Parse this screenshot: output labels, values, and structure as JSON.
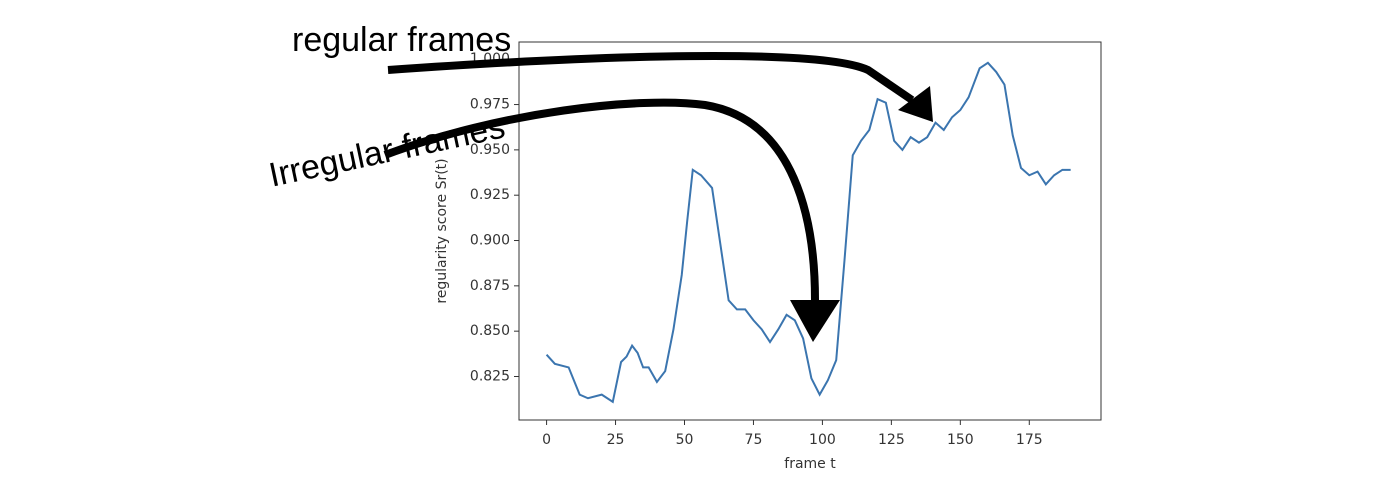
{
  "chart_data": {
    "type": "line",
    "x_label": "frame t",
    "y_label": "regularity score Sr(t)",
    "annotations": [
      "regular frames",
      "Irregular frames"
    ],
    "x": [
      0,
      3,
      8,
      12,
      15,
      20,
      24,
      27,
      29,
      31,
      33,
      35,
      37,
      40,
      43,
      46,
      49,
      51,
      53,
      56,
      60,
      63,
      66,
      69,
      72,
      75,
      78,
      81,
      84,
      87,
      90,
      93,
      96,
      99,
      102,
      105,
      108,
      111,
      114,
      117,
      120,
      123,
      126,
      129,
      132,
      135,
      138,
      141,
      144,
      147,
      150,
      153,
      157,
      160,
      163,
      166,
      169,
      172,
      175,
      178,
      181,
      184,
      187,
      190
    ],
    "series": [
      {
        "color": "#3b75af",
        "values": [
          0.837,
          0.832,
          0.83,
          0.815,
          0.813,
          0.815,
          0.811,
          0.833,
          0.836,
          0.842,
          0.838,
          0.83,
          0.83,
          0.822,
          0.828,
          0.851,
          0.881,
          0.911,
          0.939,
          0.936,
          0.929,
          0.898,
          0.867,
          0.862,
          0.862,
          0.856,
          0.851,
          0.844,
          0.851,
          0.859,
          0.856,
          0.846,
          0.824,
          0.815,
          0.823,
          0.834,
          0.889,
          0.947,
          0.955,
          0.961,
          0.978,
          0.976,
          0.955,
          0.95,
          0.957,
          0.954,
          0.957,
          0.965,
          0.961,
          0.968,
          0.972,
          0.979,
          0.995,
          0.998,
          0.993,
          0.986,
          0.958,
          0.94,
          0.936,
          0.938,
          0.931,
          0.936,
          0.939,
          0.939
        ]
      }
    ],
    "xlim": [
      -10,
      201
    ],
    "ylim": [
      0.801,
      1.0095
    ],
    "xticks": [
      0,
      25,
      50,
      75,
      100,
      125,
      150,
      175
    ],
    "yticks": [
      {
        "value": 0.825,
        "label": "0.825"
      },
      {
        "value": 0.85,
        "label": "0.850"
      },
      {
        "value": 0.875,
        "label": "0.875"
      },
      {
        "value": 0.9,
        "label": "0.900"
      },
      {
        "value": 0.925,
        "label": "0.925"
      },
      {
        "value": 0.95,
        "label": "0.950"
      },
      {
        "value": 0.975,
        "label": "0.975"
      },
      {
        "value": 1.0,
        "label": "1.000"
      }
    ],
    "grid": false
  }
}
